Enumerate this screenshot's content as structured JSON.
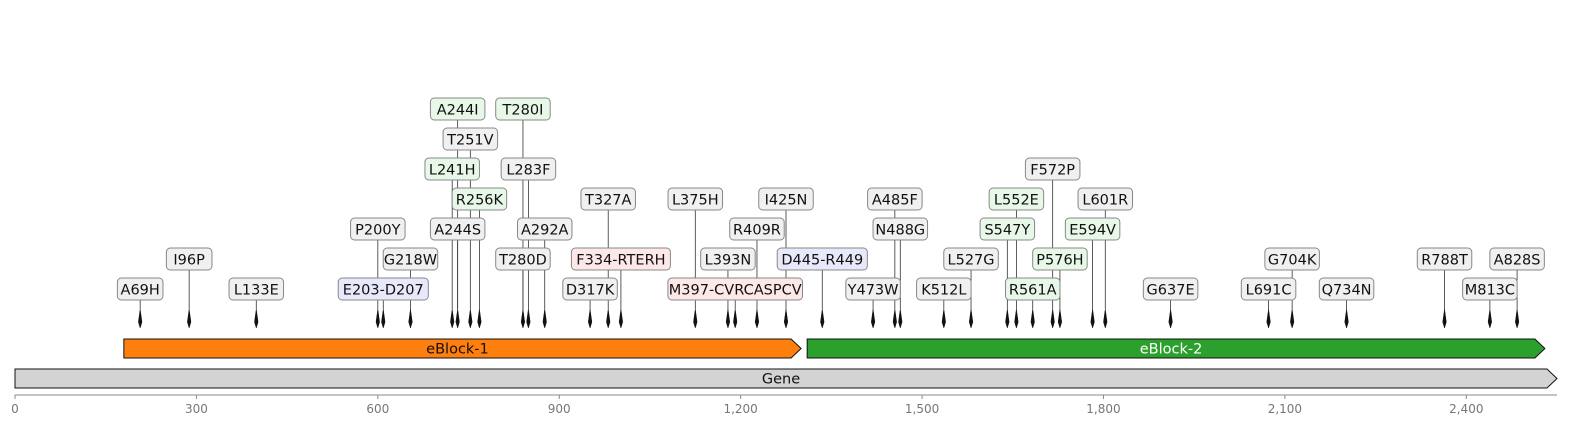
{
  "colors": {
    "change": "#f0f0f0",
    "substitution": "#e8f8e8",
    "insertion": "#fde8e8",
    "deletion": "#e8e8fb",
    "box_border": "#888888",
    "eblock1": "#ff7f0e",
    "eblock2": "#2ca02c",
    "gene": "#d3d3d3"
  },
  "axis": {
    "ticks": [
      {
        "value": 0,
        "label": "0"
      },
      {
        "value": 300,
        "label": "300"
      },
      {
        "value": 600,
        "label": "600"
      },
      {
        "value": 900,
        "label": "900"
      },
      {
        "value": 1200,
        "label": "1,200"
      },
      {
        "value": 1500,
        "label": "1,500"
      },
      {
        "value": 1800,
        "label": "1,800"
      },
      {
        "value": 2100,
        "label": "2,100"
      },
      {
        "value": 2400,
        "label": "2,400"
      }
    ],
    "range": [
      0,
      2550
    ]
  },
  "features": [
    {
      "label": "Gene",
      "start": 0,
      "end": 2550,
      "track": 0,
      "color": "#d3d3d3",
      "text_color": "#111111"
    },
    {
      "label": "eBlock-1",
      "start": 180,
      "end": 1300,
      "track": 1,
      "color": "#ff7f0e",
      "text_color": "#111111"
    },
    {
      "label": "eBlock-2",
      "start": 1310,
      "end": 2530,
      "track": 1,
      "color": "#2ca02c",
      "text_color": "#ffffff"
    }
  ],
  "mutations": [
    {
      "label": "A69H",
      "pos": 207,
      "level": 0,
      "kind": "substitution_plain"
    },
    {
      "label": "I96P",
      "pos": 288,
      "level": 1,
      "kind": "substitution_plain"
    },
    {
      "label": "L133E",
      "pos": 399,
      "level": 0,
      "kind": "substitution_plain"
    },
    {
      "label": "P200Y",
      "pos": 600,
      "level": 2,
      "kind": "substitution_plain"
    },
    {
      "label": "E203-D207",
      "pos": 609,
      "level": 0,
      "kind": "deletion"
    },
    {
      "label": "G218W",
      "pos": 654,
      "level": 1,
      "kind": "substitution_plain"
    },
    {
      "label": "L241H",
      "pos": 723,
      "level": 4,
      "kind": "substitution"
    },
    {
      "label": "A244I",
      "pos": 732,
      "level": 6,
      "kind": "substitution"
    },
    {
      "label": "A244S",
      "pos": 732,
      "level": 2,
      "kind": "substitution_plain"
    },
    {
      "label": "T251V",
      "pos": 753,
      "level": 5,
      "kind": "substitution_plain"
    },
    {
      "label": "R256K",
      "pos": 768,
      "level": 3,
      "kind": "substitution"
    },
    {
      "label": "T280I",
      "pos": 840,
      "level": 6,
      "kind": "substitution"
    },
    {
      "label": "T280D",
      "pos": 840,
      "level": 1,
      "kind": "substitution_plain"
    },
    {
      "label": "L283F",
      "pos": 849,
      "level": 4,
      "kind": "substitution_plain"
    },
    {
      "label": "A292A",
      "pos": 876,
      "level": 2,
      "kind": "substitution_plain"
    },
    {
      "label": "D317K",
      "pos": 951,
      "level": 0,
      "kind": "substitution_plain"
    },
    {
      "label": "T327A",
      "pos": 981,
      "level": 3,
      "kind": "substitution_plain"
    },
    {
      "label": "F334-RTERH",
      "pos": 1002,
      "level": 1,
      "kind": "insertion"
    },
    {
      "label": "L375H",
      "pos": 1125,
      "level": 3,
      "kind": "substitution_plain"
    },
    {
      "label": "M397-CVRCASPCV",
      "pos": 1191,
      "level": 0,
      "kind": "insertion"
    },
    {
      "label": "L393N",
      "pos": 1179,
      "level": 1,
      "kind": "substitution_plain"
    },
    {
      "label": "R409R",
      "pos": 1227,
      "level": 2,
      "kind": "substitution_plain"
    },
    {
      "label": "I425N",
      "pos": 1275,
      "level": 3,
      "kind": "substitution_plain"
    },
    {
      "label": "D445-R449",
      "pos": 1335,
      "level": 1,
      "kind": "deletion"
    },
    {
      "label": "Y473W",
      "pos": 1419,
      "level": 0,
      "kind": "substitution_plain"
    },
    {
      "label": "A485F",
      "pos": 1455,
      "level": 3,
      "kind": "substitution_plain"
    },
    {
      "label": "N488G",
      "pos": 1464,
      "level": 2,
      "kind": "substitution_plain"
    },
    {
      "label": "K512L",
      "pos": 1536,
      "level": 0,
      "kind": "substitution_plain"
    },
    {
      "label": "L527G",
      "pos": 1581,
      "level": 1,
      "kind": "substitution_plain"
    },
    {
      "label": "S547Y",
      "pos": 1641,
      "level": 2,
      "kind": "substitution"
    },
    {
      "label": "L552E",
      "pos": 1656,
      "level": 3,
      "kind": "substitution"
    },
    {
      "label": "R561A",
      "pos": 1683,
      "level": 0,
      "kind": "substitution"
    },
    {
      "label": "F572P",
      "pos": 1716,
      "level": 4,
      "kind": "substitution_plain"
    },
    {
      "label": "P576H",
      "pos": 1728,
      "level": 1,
      "kind": "substitution"
    },
    {
      "label": "E594V",
      "pos": 1782,
      "level": 2,
      "kind": "substitution"
    },
    {
      "label": "L601R",
      "pos": 1803,
      "level": 3,
      "kind": "substitution_plain"
    },
    {
      "label": "G637E",
      "pos": 1911,
      "level": 0,
      "kind": "substitution_plain"
    },
    {
      "label": "L691C",
      "pos": 2073,
      "level": 0,
      "kind": "substitution_plain"
    },
    {
      "label": "G704K",
      "pos": 2112,
      "level": 1,
      "kind": "substitution_plain"
    },
    {
      "label": "Q734N",
      "pos": 2202,
      "level": 0,
      "kind": "substitution_plain"
    },
    {
      "label": "R788T",
      "pos": 2364,
      "level": 1,
      "kind": "substitution_plain"
    },
    {
      "label": "M813C",
      "pos": 2439,
      "level": 0,
      "kind": "substitution_plain"
    },
    {
      "label": "A828S",
      "pos": 2484,
      "level": 1,
      "kind": "substitution_plain"
    }
  ]
}
